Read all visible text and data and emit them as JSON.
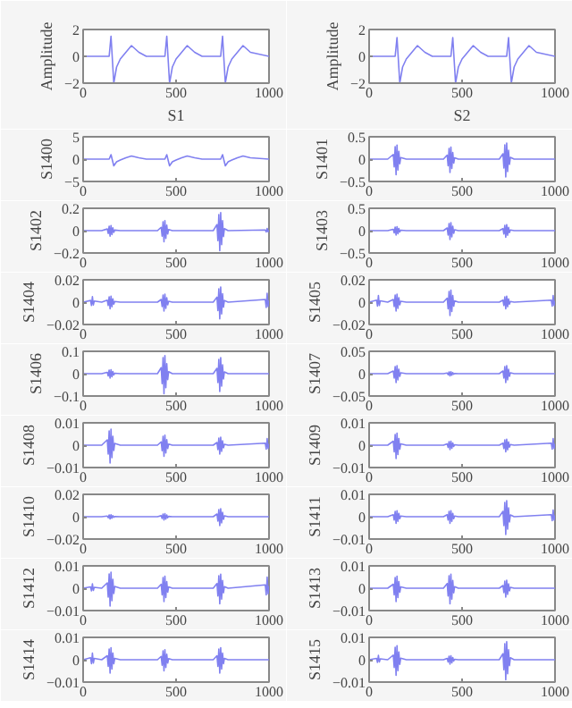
{
  "chart_data": [
    {
      "type": "line",
      "ylabel": "Amplitude",
      "xlabel": "S1",
      "xlim": [
        0,
        1000
      ],
      "xticks": [
        0,
        500,
        1000
      ],
      "ylim": [
        -2,
        2
      ],
      "yticks": [
        -2,
        0,
        2
      ],
      "x": [
        0,
        100,
        140,
        150,
        165,
        180,
        200,
        230,
        260,
        300,
        340,
        400,
        440,
        450,
        465,
        480,
        500,
        530,
        560,
        600,
        640,
        700,
        740,
        750,
        765,
        780,
        800,
        830,
        860,
        900,
        1000
      ],
      "series": [
        {
          "color": "#8080f0",
          "values": [
            0,
            0,
            0,
            1.5,
            -2,
            -0.8,
            -0.2,
            0.3,
            0.8,
            0.3,
            0,
            0,
            0,
            1.5,
            -2,
            -0.8,
            -0.2,
            0.3,
            0.8,
            0.3,
            0,
            0,
            0,
            1.5,
            -2,
            -0.8,
            -0.2,
            0.3,
            0.8,
            0.3,
            0
          ]
        }
      ]
    },
    {
      "type": "line",
      "ylabel": "Amplitude",
      "xlabel": "S2",
      "xlim": [
        0,
        1000
      ],
      "xticks": [
        0,
        500,
        1000
      ],
      "ylim": [
        -2,
        2
      ],
      "yticks": [
        -2,
        0,
        2
      ],
      "x": [
        0,
        100,
        140,
        150,
        165,
        180,
        200,
        230,
        260,
        300,
        340,
        400,
        440,
        450,
        465,
        480,
        500,
        530,
        560,
        600,
        640,
        700,
        740,
        750,
        765,
        780,
        800,
        830,
        860,
        900,
        1000
      ],
      "series": [
        {
          "color": "#8080f0",
          "values": [
            0,
            0,
            0,
            1.4,
            -2,
            -0.8,
            -0.2,
            0.3,
            0.8,
            0.3,
            0,
            0,
            0,
            1.4,
            -2,
            -0.8,
            -0.2,
            0.3,
            0.8,
            0.3,
            0,
            0,
            0,
            1.4,
            -2,
            -0.8,
            -0.2,
            0.3,
            0.8,
            0.3,
            0
          ]
        }
      ]
    },
    {
      "type": "line",
      "ylabel": "S1400",
      "xlim": [
        0,
        1000
      ],
      "xticks": [
        0,
        500,
        1000
      ],
      "ylim": [
        -5,
        5
      ],
      "yticks": [
        -5,
        0,
        5
      ],
      "x": [
        0,
        100,
        140,
        150,
        165,
        180,
        200,
        230,
        260,
        300,
        340,
        400,
        440,
        450,
        465,
        480,
        500,
        530,
        560,
        600,
        640,
        700,
        740,
        750,
        765,
        780,
        800,
        830,
        860,
        900,
        1000
      ],
      "series": [
        {
          "color": "#8080f0",
          "values": [
            0,
            0,
            0,
            1,
            -1.5,
            -0.6,
            -0.2,
            0.3,
            0.7,
            0.3,
            0,
            0,
            0,
            1,
            -1.5,
            -0.6,
            -0.2,
            0.3,
            0.7,
            0.3,
            0,
            0,
            0,
            1,
            -1.5,
            -0.6,
            -0.2,
            0.3,
            0.7,
            0.3,
            0
          ]
        }
      ]
    },
    {
      "type": "line",
      "ylabel": "S1401",
      "xlim": [
        0,
        1000
      ],
      "xticks": [
        0,
        500,
        1000
      ],
      "ylim": [
        -0.5,
        0.5
      ],
      "yticks": [
        -0.5,
        0,
        0.5
      ],
      "x": [
        0,
        40,
        45,
        50,
        55,
        60,
        100,
        130,
        135,
        140,
        145,
        150,
        155,
        160,
        165,
        170,
        200,
        400,
        420,
        425,
        430,
        435,
        440,
        445,
        450,
        455,
        460,
        480,
        700,
        720,
        725,
        730,
        735,
        740,
        745,
        750,
        755,
        760,
        780,
        980,
        985,
        990,
        995,
        1000
      ],
      "series": [
        {
          "color": "#8080f0",
          "values": [
            0,
            0,
            0,
            0,
            0,
            0,
            0,
            0.105,
            -0.175,
            0.28,
            -0.35,
            0.315,
            -0.245,
            0.175,
            -0.105,
            0.035,
            0,
            0,
            0.09,
            -0.15,
            0.24,
            -0.3,
            0.27,
            -0.21,
            0.15,
            -0.09,
            0.03,
            0,
            0,
            0.12,
            -0.2,
            0.32,
            -0.4,
            0.36,
            -0.28,
            0.2,
            -0.12,
            0.04,
            0,
            0,
            0,
            0,
            0,
            0
          ]
        }
      ]
    },
    {
      "type": "line",
      "ylabel": "S1402",
      "xlim": [
        0,
        1000
      ],
      "xticks": [
        0,
        500,
        1000
      ],
      "ylim": [
        -0.2,
        0.2
      ],
      "yticks": [
        -0.2,
        0,
        0.2
      ],
      "x": [
        0,
        40,
        45,
        50,
        55,
        60,
        100,
        130,
        135,
        140,
        145,
        150,
        155,
        160,
        165,
        170,
        200,
        400,
        420,
        425,
        430,
        435,
        440,
        445,
        450,
        455,
        460,
        480,
        700,
        720,
        725,
        730,
        735,
        740,
        745,
        750,
        755,
        760,
        780,
        980,
        985,
        990,
        995,
        1000
      ],
      "series": [
        {
          "color": "#8080f0",
          "values": [
            0,
            0,
            0,
            0,
            0,
            0,
            0,
            0.015,
            -0.025,
            0.04,
            -0.05,
            0.045,
            -0.035,
            0.025,
            -0.015,
            0.005,
            0,
            0,
            0.03,
            -0.05,
            0.08,
            -0.1,
            0.09,
            -0.07,
            0.05,
            -0.03,
            0.01,
            0,
            0,
            0.054,
            -0.09,
            0.144,
            -0.18,
            0.162,
            -0.126,
            0.09,
            -0.054,
            0.018,
            0,
            0.006,
            -0.012,
            0.02,
            -0.01,
            0.004
          ]
        }
      ]
    },
    {
      "type": "line",
      "ylabel": "S1403",
      "xlim": [
        0,
        1000
      ],
      "xticks": [
        0,
        500,
        1000
      ],
      "ylim": [
        -0.5,
        0.5
      ],
      "yticks": [
        -0.5,
        0,
        0.5
      ],
      "x": [
        0,
        40,
        45,
        50,
        55,
        60,
        100,
        130,
        135,
        140,
        145,
        150,
        155,
        160,
        165,
        170,
        200,
        400,
        420,
        425,
        430,
        435,
        440,
        445,
        450,
        455,
        460,
        480,
        700,
        720,
        725,
        730,
        735,
        740,
        745,
        750,
        755,
        760,
        780,
        980,
        985,
        990,
        995,
        1000
      ],
      "series": [
        {
          "color": "#8080f0",
          "values": [
            0,
            0,
            0,
            0,
            0,
            0,
            0,
            0.03,
            -0.05,
            0.08,
            -0.1,
            0.09,
            -0.07,
            0.05,
            -0.03,
            0.01,
            0,
            0,
            0.06,
            -0.1,
            0.16,
            -0.2,
            0.18,
            -0.14,
            0.1,
            -0.06,
            0.02,
            0,
            0,
            0.045,
            -0.075,
            0.12,
            -0.15,
            0.135,
            -0.105,
            0.075,
            -0.045,
            0.015,
            0,
            0,
            0,
            0,
            0,
            0
          ]
        }
      ]
    },
    {
      "type": "line",
      "ylabel": "S1404",
      "xlim": [
        0,
        1000
      ],
      "xticks": [
        0,
        500,
        1000
      ],
      "ylim": [
        -0.02,
        0.02
      ],
      "yticks": [
        -0.02,
        0,
        0.02
      ],
      "x": [
        0,
        40,
        45,
        50,
        55,
        60,
        100,
        130,
        135,
        140,
        145,
        150,
        155,
        160,
        165,
        170,
        200,
        400,
        420,
        425,
        430,
        435,
        440,
        445,
        450,
        455,
        460,
        480,
        700,
        720,
        725,
        730,
        735,
        740,
        745,
        750,
        755,
        760,
        780,
        980,
        985,
        990,
        995,
        1000
      ],
      "series": [
        {
          "color": "#8080f0",
          "values": [
            0,
            0.0015,
            -0.003,
            0.005,
            -0.0025,
            0.001,
            0,
            0.0018,
            -0.003,
            0.0048,
            -0.006,
            0.0054,
            -0.0042,
            0.003,
            -0.0018,
            0.0006,
            0,
            0,
            0.0024,
            -0.004,
            0.0064,
            -0.008,
            0.0072,
            -0.0056,
            0.004,
            -0.0024,
            0.0008,
            0,
            0,
            0.0045,
            -0.0075,
            0.012,
            -0.015,
            0.0135,
            -0.0105,
            0.0075,
            -0.0045,
            0.0015,
            0,
            0.0024,
            -0.0048,
            0.008,
            -0.004,
            0.0016
          ]
        }
      ]
    },
    {
      "type": "line",
      "ylabel": "S1405",
      "xlim": [
        0,
        1000
      ],
      "xticks": [
        0,
        500,
        1000
      ],
      "ylim": [
        -0.02,
        0.02
      ],
      "yticks": [
        -0.02,
        0,
        0.02
      ],
      "x": [
        0,
        40,
        45,
        50,
        55,
        60,
        100,
        130,
        135,
        140,
        145,
        150,
        155,
        160,
        165,
        170,
        200,
        400,
        420,
        425,
        430,
        435,
        440,
        445,
        450,
        455,
        460,
        480,
        700,
        720,
        725,
        730,
        735,
        740,
        745,
        750,
        755,
        760,
        780,
        980,
        985,
        990,
        995,
        1000
      ],
      "series": [
        {
          "color": "#8080f0",
          "values": [
            0,
            0.0018,
            -0.0036,
            0.006,
            -0.003,
            0.0012,
            0,
            0.0024,
            -0.004,
            0.0064,
            -0.008,
            0.0072,
            -0.0056,
            0.004,
            -0.0024,
            0.0008,
            0,
            0,
            0.0036,
            -0.006,
            0.0096,
            -0.012,
            0.0108,
            -0.0084,
            0.006,
            -0.0036,
            0.0012,
            0,
            0,
            0.0018,
            -0.003,
            0.0048,
            -0.006,
            0.0054,
            -0.0042,
            0.003,
            -0.0018,
            0.0006,
            0,
            0.0018,
            -0.0036,
            0.006,
            -0.003,
            0.0012
          ]
        }
      ]
    },
    {
      "type": "line",
      "ylabel": "S1406",
      "xlim": [
        0,
        1000
      ],
      "xticks": [
        0,
        500,
        1000
      ],
      "ylim": [
        -0.1,
        0.1
      ],
      "yticks": [
        -0.1,
        0,
        0.1
      ],
      "x": [
        0,
        40,
        45,
        50,
        55,
        60,
        100,
        130,
        135,
        140,
        145,
        150,
        155,
        160,
        165,
        170,
        200,
        400,
        420,
        425,
        430,
        435,
        440,
        445,
        450,
        455,
        460,
        480,
        700,
        720,
        725,
        730,
        735,
        740,
        745,
        750,
        755,
        760,
        780,
        980,
        985,
        990,
        995,
        1000
      ],
      "series": [
        {
          "color": "#8080f0",
          "values": [
            0,
            0,
            0,
            0,
            0,
            0,
            0,
            0.006,
            -0.01,
            0.016,
            -0.02,
            0.018,
            -0.014,
            0.01,
            -0.006,
            0.002,
            0,
            0,
            0.027,
            -0.045,
            0.072,
            -0.09,
            0.081,
            -0.063,
            0.045,
            -0.027,
            0.009,
            0,
            0,
            0.024,
            -0.04,
            0.064,
            -0.08,
            0.072,
            -0.056,
            0.04,
            -0.024,
            0.008,
            0,
            0,
            0,
            0,
            0,
            0
          ]
        }
      ]
    },
    {
      "type": "line",
      "ylabel": "S1407",
      "xlim": [
        0,
        1000
      ],
      "xticks": [
        0,
        500,
        1000
      ],
      "ylim": [
        -0.05,
        0.05
      ],
      "yticks": [
        -0.05,
        0,
        0.05
      ],
      "x": [
        0,
        40,
        45,
        50,
        55,
        60,
        100,
        130,
        135,
        140,
        145,
        150,
        155,
        160,
        165,
        170,
        200,
        400,
        420,
        425,
        430,
        435,
        440,
        445,
        450,
        455,
        460,
        480,
        700,
        720,
        725,
        730,
        735,
        740,
        745,
        750,
        755,
        760,
        780,
        980,
        985,
        990,
        995,
        1000
      ],
      "series": [
        {
          "color": "#8080f0",
          "values": [
            0,
            0,
            0,
            0,
            0,
            0,
            0,
            0.006,
            -0.01,
            0.016,
            -0.02,
            0.018,
            -0.014,
            0.01,
            -0.006,
            0.002,
            0,
            0,
            0.0015,
            -0.0025,
            0.004,
            -0.005,
            0.0045,
            -0.0035,
            0.0025,
            -0.0015,
            0.0005,
            0,
            0,
            0.006,
            -0.01,
            0.016,
            -0.02,
            0.018,
            -0.014,
            0.01,
            -0.006,
            0.002,
            0,
            0,
            0,
            0,
            0,
            0
          ]
        }
      ]
    },
    {
      "type": "line",
      "ylabel": "S1408",
      "xlim": [
        0,
        1000
      ],
      "xticks": [
        0,
        500,
        1000
      ],
      "ylim": [
        -0.01,
        0.01
      ],
      "yticks": [
        -0.01,
        0,
        0.01
      ],
      "x": [
        0,
        40,
        45,
        50,
        55,
        60,
        100,
        130,
        135,
        140,
        145,
        150,
        155,
        160,
        165,
        170,
        200,
        400,
        420,
        425,
        430,
        435,
        440,
        445,
        450,
        455,
        460,
        480,
        700,
        720,
        725,
        730,
        735,
        740,
        745,
        750,
        755,
        760,
        780,
        980,
        985,
        990,
        995,
        1000
      ],
      "series": [
        {
          "color": "#8080f0",
          "values": [
            0,
            0,
            0,
            0,
            0,
            0,
            0,
            0.0024,
            -0.004,
            0.0064,
            -0.008,
            0.0072,
            -0.0056,
            0.004,
            -0.0024,
            0.0008,
            0,
            0,
            0.0015,
            -0.0025,
            0.004,
            -0.005,
            0.0045,
            -0.0035,
            0.0025,
            -0.0015,
            0.0005,
            0,
            0,
            0.0012,
            -0.002,
            0.0032,
            -0.004,
            0.0036,
            -0.0028,
            0.002,
            -0.0012,
            0.0004,
            0,
            0.0009,
            -0.0018,
            0.003,
            -0.0015,
            0.0006
          ]
        }
      ]
    },
    {
      "type": "line",
      "ylabel": "S1409",
      "xlim": [
        0,
        1000
      ],
      "xticks": [
        0,
        500,
        1000
      ],
      "ylim": [
        -0.01,
        0.01
      ],
      "yticks": [
        -0.01,
        0,
        0.01
      ],
      "x": [
        0,
        40,
        45,
        50,
        55,
        60,
        100,
        130,
        135,
        140,
        145,
        150,
        155,
        160,
        165,
        170,
        200,
        400,
        420,
        425,
        430,
        435,
        440,
        445,
        450,
        455,
        460,
        480,
        700,
        720,
        725,
        730,
        735,
        740,
        745,
        750,
        755,
        760,
        780,
        980,
        985,
        990,
        995,
        1000
      ],
      "series": [
        {
          "color": "#8080f0",
          "values": [
            0,
            0,
            0,
            0,
            0,
            0,
            0,
            0.0018,
            -0.003,
            0.0048,
            -0.006,
            0.0054,
            -0.0042,
            0.003,
            -0.0018,
            0.0006,
            0,
            0,
            0.0006,
            -0.001,
            0.0016,
            -0.002,
            0.0018,
            -0.0014,
            0.001,
            -0.0006,
            0.0002,
            0,
            0,
            0.0009,
            -0.0015,
            0.0024,
            -0.003,
            0.0027,
            -0.0021,
            0.0015,
            -0.0009,
            0.0003,
            0,
            0.0009,
            -0.0018,
            0.003,
            -0.0015,
            0.0006
          ]
        }
      ]
    },
    {
      "type": "line",
      "ylabel": "S1410",
      "xlim": [
        0,
        1000
      ],
      "xticks": [
        0,
        500,
        1000
      ],
      "ylim": [
        -0.02,
        0.02
      ],
      "yticks": [
        -0.02,
        0,
        0.02
      ],
      "x": [
        0,
        40,
        45,
        50,
        55,
        60,
        100,
        130,
        135,
        140,
        145,
        150,
        155,
        160,
        165,
        170,
        200,
        400,
        420,
        425,
        430,
        435,
        440,
        445,
        450,
        455,
        460,
        480,
        700,
        720,
        725,
        730,
        735,
        740,
        745,
        750,
        755,
        760,
        780,
        980,
        985,
        990,
        995,
        1000
      ],
      "series": [
        {
          "color": "#8080f0",
          "values": [
            0,
            0,
            0,
            0,
            0,
            0,
            0,
            0.0006,
            -0.001,
            0.0016,
            -0.002,
            0.0018,
            -0.0014,
            0.001,
            -0.0006,
            0.0002,
            0,
            0,
            0.0009,
            -0.0015,
            0.0024,
            -0.003,
            0.0027,
            -0.0021,
            0.0015,
            -0.0009,
            0.0003,
            0,
            0,
            0.0024,
            -0.004,
            0.0064,
            -0.008,
            0.0072,
            -0.0056,
            0.004,
            -0.0024,
            0.0008,
            0,
            0,
            0,
            0,
            0,
            0
          ]
        }
      ]
    },
    {
      "type": "line",
      "ylabel": "S1411",
      "xlim": [
        0,
        1000
      ],
      "xticks": [
        0,
        500,
        1000
      ],
      "ylim": [
        -0.01,
        0.01
      ],
      "yticks": [
        -0.01,
        0,
        0.01
      ],
      "x": [
        0,
        40,
        45,
        50,
        55,
        60,
        100,
        130,
        135,
        140,
        145,
        150,
        155,
        160,
        165,
        170,
        200,
        400,
        420,
        425,
        430,
        435,
        440,
        445,
        450,
        455,
        460,
        480,
        700,
        720,
        725,
        730,
        735,
        740,
        745,
        750,
        755,
        760,
        780,
        980,
        985,
        990,
        995,
        1000
      ],
      "series": [
        {
          "color": "#8080f0",
          "values": [
            0,
            0,
            0,
            0,
            0,
            0,
            0,
            0.0009,
            -0.0015,
            0.0024,
            -0.003,
            0.0027,
            -0.0021,
            0.0015,
            -0.0009,
            0.0003,
            0,
            0,
            0.0009,
            -0.0015,
            0.0024,
            -0.003,
            0.0027,
            -0.0021,
            0.0015,
            -0.0009,
            0.0003,
            0,
            0,
            0.0024,
            -0.004,
            0.0064,
            -0.008,
            0.0072,
            -0.0056,
            0.004,
            -0.0024,
            0.0008,
            0,
            0.0009,
            -0.0018,
            0.003,
            -0.0015,
            0.0006
          ]
        }
      ]
    },
    {
      "type": "line",
      "ylabel": "S1412",
      "xlim": [
        0,
        1000
      ],
      "xticks": [
        0,
        500,
        1000
      ],
      "ylim": [
        -0.01,
        0.01
      ],
      "yticks": [
        -0.01,
        0,
        0.01
      ],
      "x": [
        0,
        40,
        45,
        50,
        55,
        60,
        100,
        130,
        135,
        140,
        145,
        150,
        155,
        160,
        165,
        170,
        200,
        400,
        420,
        425,
        430,
        435,
        440,
        445,
        450,
        455,
        460,
        480,
        700,
        720,
        725,
        730,
        735,
        740,
        745,
        750,
        755,
        760,
        780,
        980,
        985,
        990,
        995,
        1000
      ],
      "series": [
        {
          "color": "#8080f0",
          "values": [
            0,
            0.0006,
            -0.0012,
            0.002,
            -0.001,
            0.0004,
            0,
            0.0024,
            -0.004,
            0.0064,
            -0.008,
            0.0072,
            -0.0056,
            0.004,
            -0.0024,
            0.0008,
            0,
            0,
            0.0018,
            -0.003,
            0.0048,
            -0.006,
            0.0054,
            -0.0042,
            0.003,
            -0.0018,
            0.0006,
            0,
            0,
            0.0021,
            -0.0035,
            0.0056,
            -0.007,
            0.0063,
            -0.0049,
            0.0035,
            -0.0021,
            0.0007,
            0,
            0.0015,
            -0.003,
            0.005,
            -0.0025,
            0.001
          ]
        }
      ]
    },
    {
      "type": "line",
      "ylabel": "S1413",
      "xlim": [
        0,
        1000
      ],
      "xticks": [
        0,
        500,
        1000
      ],
      "ylim": [
        -0.01,
        0.01
      ],
      "yticks": [
        -0.01,
        0,
        0.01
      ],
      "x": [
        0,
        40,
        45,
        50,
        55,
        60,
        100,
        130,
        135,
        140,
        145,
        150,
        155,
        160,
        165,
        170,
        200,
        400,
        420,
        425,
        430,
        435,
        440,
        445,
        450,
        455,
        460,
        480,
        700,
        720,
        725,
        730,
        735,
        740,
        745,
        750,
        755,
        760,
        780,
        980,
        985,
        990,
        995,
        1000
      ],
      "series": [
        {
          "color": "#8080f0",
          "values": [
            0,
            0,
            0,
            0,
            0,
            0,
            0,
            0.0018,
            -0.003,
            0.0048,
            -0.006,
            0.0054,
            -0.0042,
            0.003,
            -0.0018,
            0.0006,
            0,
            0,
            0.0021,
            -0.0035,
            0.0056,
            -0.007,
            0.0063,
            -0.0049,
            0.0035,
            -0.0021,
            0.0007,
            0,
            0,
            0.0012,
            -0.002,
            0.0032,
            -0.004,
            0.0036,
            -0.0028,
            0.002,
            -0.0012,
            0.0004,
            0,
            0,
            0,
            0,
            0,
            0
          ]
        }
      ]
    },
    {
      "type": "line",
      "ylabel": "S1414",
      "xlim": [
        0,
        1000
      ],
      "xticks": [
        0,
        500,
        1000
      ],
      "ylim": [
        -0.01,
        0.01
      ],
      "yticks": [
        -0.01,
        0,
        0.01
      ],
      "x": [
        0,
        40,
        45,
        50,
        55,
        60,
        100,
        130,
        135,
        140,
        145,
        150,
        155,
        160,
        165,
        170,
        200,
        400,
        420,
        425,
        430,
        435,
        440,
        445,
        450,
        455,
        460,
        480,
        700,
        720,
        725,
        730,
        735,
        740,
        745,
        750,
        755,
        760,
        780,
        980,
        985,
        990,
        995,
        1000
      ],
      "series": [
        {
          "color": "#8080f0",
          "values": [
            0,
            0.0009,
            -0.0018,
            0.003,
            -0.0015,
            0.0006,
            0,
            0.0018,
            -0.003,
            0.0048,
            -0.006,
            0.0054,
            -0.0042,
            0.003,
            -0.0018,
            0.0006,
            0,
            0,
            0.0015,
            -0.0025,
            0.004,
            -0.005,
            0.0045,
            -0.0035,
            0.0025,
            -0.0015,
            0.0005,
            0,
            0,
            0.0018,
            -0.003,
            0.0048,
            -0.006,
            0.0054,
            -0.0042,
            0.003,
            -0.0018,
            0.0006,
            0,
            0,
            0,
            0,
            0,
            0
          ]
        }
      ]
    },
    {
      "type": "line",
      "ylabel": "S1415",
      "xlim": [
        0,
        1000
      ],
      "xticks": [
        0,
        500,
        1000
      ],
      "ylim": [
        -0.01,
        0.01
      ],
      "yticks": [
        -0.01,
        0,
        0.01
      ],
      "x": [
        0,
        40,
        45,
        50,
        55,
        60,
        100,
        130,
        135,
        140,
        145,
        150,
        155,
        160,
        165,
        170,
        200,
        400,
        420,
        425,
        430,
        435,
        440,
        445,
        450,
        455,
        460,
        480,
        700,
        720,
        725,
        730,
        735,
        740,
        745,
        750,
        755,
        760,
        780,
        980,
        985,
        990,
        995,
        1000
      ],
      "series": [
        {
          "color": "#8080f0",
          "values": [
            0,
            0.0006,
            -0.0012,
            0.002,
            -0.001,
            0.0004,
            0,
            0.0021,
            -0.0035,
            0.0056,
            -0.007,
            0.0063,
            -0.0049,
            0.0035,
            -0.0021,
            0.0007,
            0,
            0,
            0.0006,
            -0.001,
            0.0016,
            -0.002,
            0.0018,
            -0.0014,
            0.001,
            -0.0006,
            0.0002,
            0,
            0,
            0.0027,
            -0.0045,
            0.0072,
            -0.009,
            0.0081,
            -0.0063,
            0.0045,
            -0.0027,
            0.0009,
            0,
            0,
            0,
            0,
            0,
            0
          ]
        }
      ]
    }
  ]
}
